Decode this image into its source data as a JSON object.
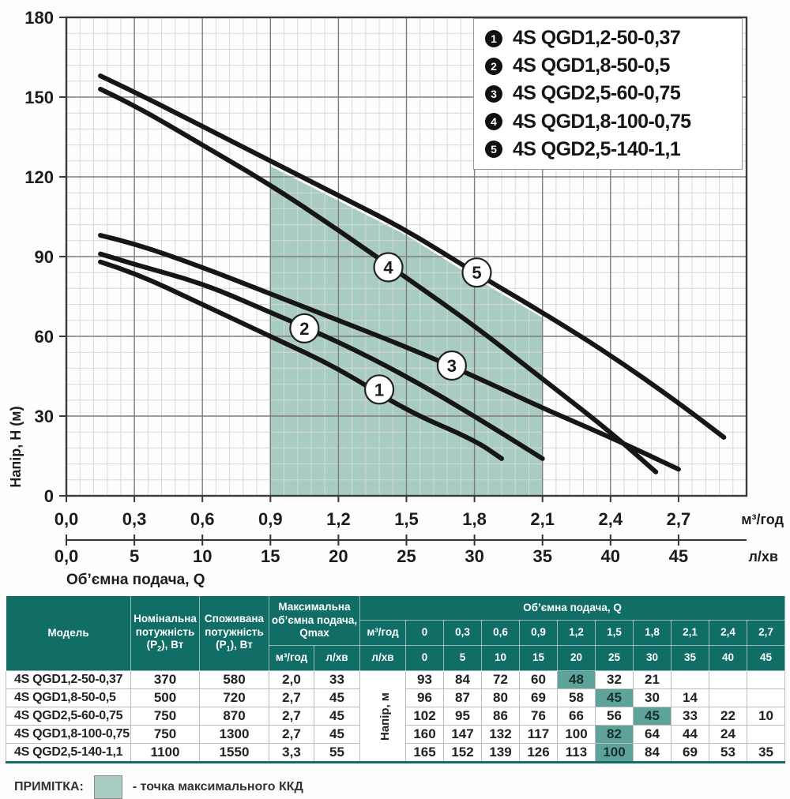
{
  "colors": {
    "teal_header": "#116e67",
    "highlight_cell": "#5da39a",
    "efficiency_region": "#a8ccc4",
    "curve": "#161616",
    "grid_major": "#7d7d7d",
    "grid_minor": "#d7d7d7",
    "axis_box": "#3a3a3a"
  },
  "chart_data": {
    "type": "line",
    "title": "",
    "xlabel": "Об’ємна подача, Q",
    "ylabel": "Напір, H (м)",
    "x_unit_primary": "м³/год",
    "x_unit_secondary": "л/хв",
    "xlim": [
      0,
      3.0
    ],
    "ylim": [
      0,
      180
    ],
    "grid": "on",
    "y_ticks": [
      0,
      30,
      60,
      90,
      120,
      150,
      180
    ],
    "x_tick_q": [
      0,
      0.3,
      0.6,
      0.9,
      1.2,
      1.5,
      1.8,
      2.1,
      2.4,
      2.7
    ],
    "x_tick_labels_m3": [
      "0,0",
      "0,3",
      "0,6",
      "0,9",
      "1,2",
      "1,5",
      "1,8",
      "2,1",
      "2,4",
      "2,7"
    ],
    "x_tick_labels_l": [
      "0,0",
      "5",
      "10",
      "15",
      "20",
      "25",
      "30",
      "35",
      "40",
      "45"
    ],
    "legend_position": "top-right",
    "efficiency_region": {
      "meaning": "точка максимального ККД",
      "points": [
        [
          0.9,
          0
        ],
        [
          0.9,
          124
        ],
        [
          1.2,
          111
        ],
        [
          1.5,
          98
        ],
        [
          1.8,
          82
        ],
        [
          2.1,
          67
        ],
        [
          2.1,
          0
        ]
      ]
    },
    "series": [
      {
        "num": "1",
        "name": "4S QGD1,2-50-0,37",
        "x": [
          0.15,
          0.3,
          0.6,
          0.9,
          1.2,
          1.5,
          1.8,
          1.92
        ],
        "y": [
          88,
          84,
          72,
          60,
          48,
          32,
          21,
          14
        ],
        "marker": {
          "x": 1.38,
          "y": 40
        }
      },
      {
        "num": "2",
        "name": "4S QGD1,8-50-0,5",
        "x": [
          0.15,
          0.3,
          0.6,
          0.9,
          1.2,
          1.5,
          1.8,
          2.1
        ],
        "y": [
          91,
          87,
          80,
          69,
          58,
          45,
          30,
          14
        ],
        "marker": {
          "x": 1.05,
          "y": 63
        }
      },
      {
        "num": "3",
        "name": "4S QGD2,5-60-0,75",
        "x": [
          0.15,
          0.3,
          0.6,
          0.9,
          1.2,
          1.5,
          1.8,
          2.1,
          2.4,
          2.7
        ],
        "y": [
          98,
          95,
          86,
          76,
          66,
          56,
          45,
          33,
          22,
          10
        ],
        "marker": {
          "x": 1.7,
          "y": 49
        }
      },
      {
        "num": "4",
        "name": "4S QGD1,8-100-0,75",
        "x": [
          0.15,
          0.3,
          0.6,
          0.9,
          1.2,
          1.5,
          1.8,
          2.1,
          2.4,
          2.6
        ],
        "y": [
          153,
          147,
          132,
          117,
          100,
          82,
          64,
          44,
          24,
          9
        ],
        "marker": {
          "x": 1.42,
          "y": 86
        }
      },
      {
        "num": "5",
        "name": "4S QGD2,5-140-1,1",
        "x": [
          0.15,
          0.3,
          0.6,
          0.9,
          1.2,
          1.5,
          1.8,
          2.1,
          2.4,
          2.7,
          2.9
        ],
        "y": [
          158,
          152,
          139,
          126,
          113,
          100,
          84,
          69,
          53,
          35,
          22
        ],
        "marker": {
          "x": 1.81,
          "y": 84
        }
      }
    ]
  },
  "table": {
    "header": {
      "model": "Модель",
      "nominal_power": {
        "text": "Номінальна потужність",
        "symbol": "P",
        "subscript": "2",
        "suffix": ", Вт"
      },
      "input_power": {
        "text": "Споживана потужність",
        "symbol": "P",
        "subscript": "1",
        "suffix": ", Вт"
      },
      "qmax": "Максимальна об’ємна подача, Qmax",
      "flow": "Об’ємна подача, Q",
      "unit_m3": "м³/год",
      "unit_l": "л/хв",
      "flow_m3": [
        "0",
        "0,3",
        "0,6",
        "0,9",
        "1,2",
        "1,5",
        "1,8",
        "2,1",
        "2,4",
        "2,7"
      ],
      "flow_l": [
        "0",
        "5",
        "10",
        "15",
        "20",
        "25",
        "30",
        "35",
        "40",
        "45"
      ],
      "head_label": "Напір, м"
    },
    "rows": [
      {
        "model": "4S QGD1,2-50-0,37",
        "p2": "370",
        "p1": "580",
        "qmax_m3": "2,0",
        "qmax_l": "33",
        "heads": [
          "93",
          "84",
          "72",
          "60",
          "48",
          "32",
          "21",
          "",
          "",
          ""
        ],
        "highlight": 4
      },
      {
        "model": "4S QGD1,8-50-0,5",
        "p2": "500",
        "p1": "720",
        "qmax_m3": "2,7",
        "qmax_l": "45",
        "heads": [
          "96",
          "87",
          "80",
          "69",
          "58",
          "45",
          "30",
          "14",
          "",
          ""
        ],
        "highlight": 5
      },
      {
        "model": "4S QGD2,5-60-0,75",
        "p2": "750",
        "p1": "870",
        "qmax_m3": "2,7",
        "qmax_l": "45",
        "heads": [
          "102",
          "95",
          "86",
          "76",
          "66",
          "56",
          "45",
          "33",
          "22",
          "10"
        ],
        "highlight": 6
      },
      {
        "model": "4S QGD1,8-100-0,75",
        "p2": "750",
        "p1": "1300",
        "qmax_m3": "2,7",
        "qmax_l": "45",
        "heads": [
          "160",
          "147",
          "132",
          "117",
          "100",
          "82",
          "64",
          "44",
          "24",
          ""
        ],
        "highlight": 5
      },
      {
        "model": "4S QGD2,5-140-1,1",
        "p2": "1100",
        "p1": "1550",
        "qmax_m3": "3,3",
        "qmax_l": "55",
        "heads": [
          "165",
          "152",
          "139",
          "126",
          "113",
          "100",
          "84",
          "69",
          "53",
          "35"
        ],
        "highlight": 5
      }
    ]
  },
  "note": {
    "label": "ПРИМІТКА:",
    "text": "- точка максимального ККД"
  }
}
